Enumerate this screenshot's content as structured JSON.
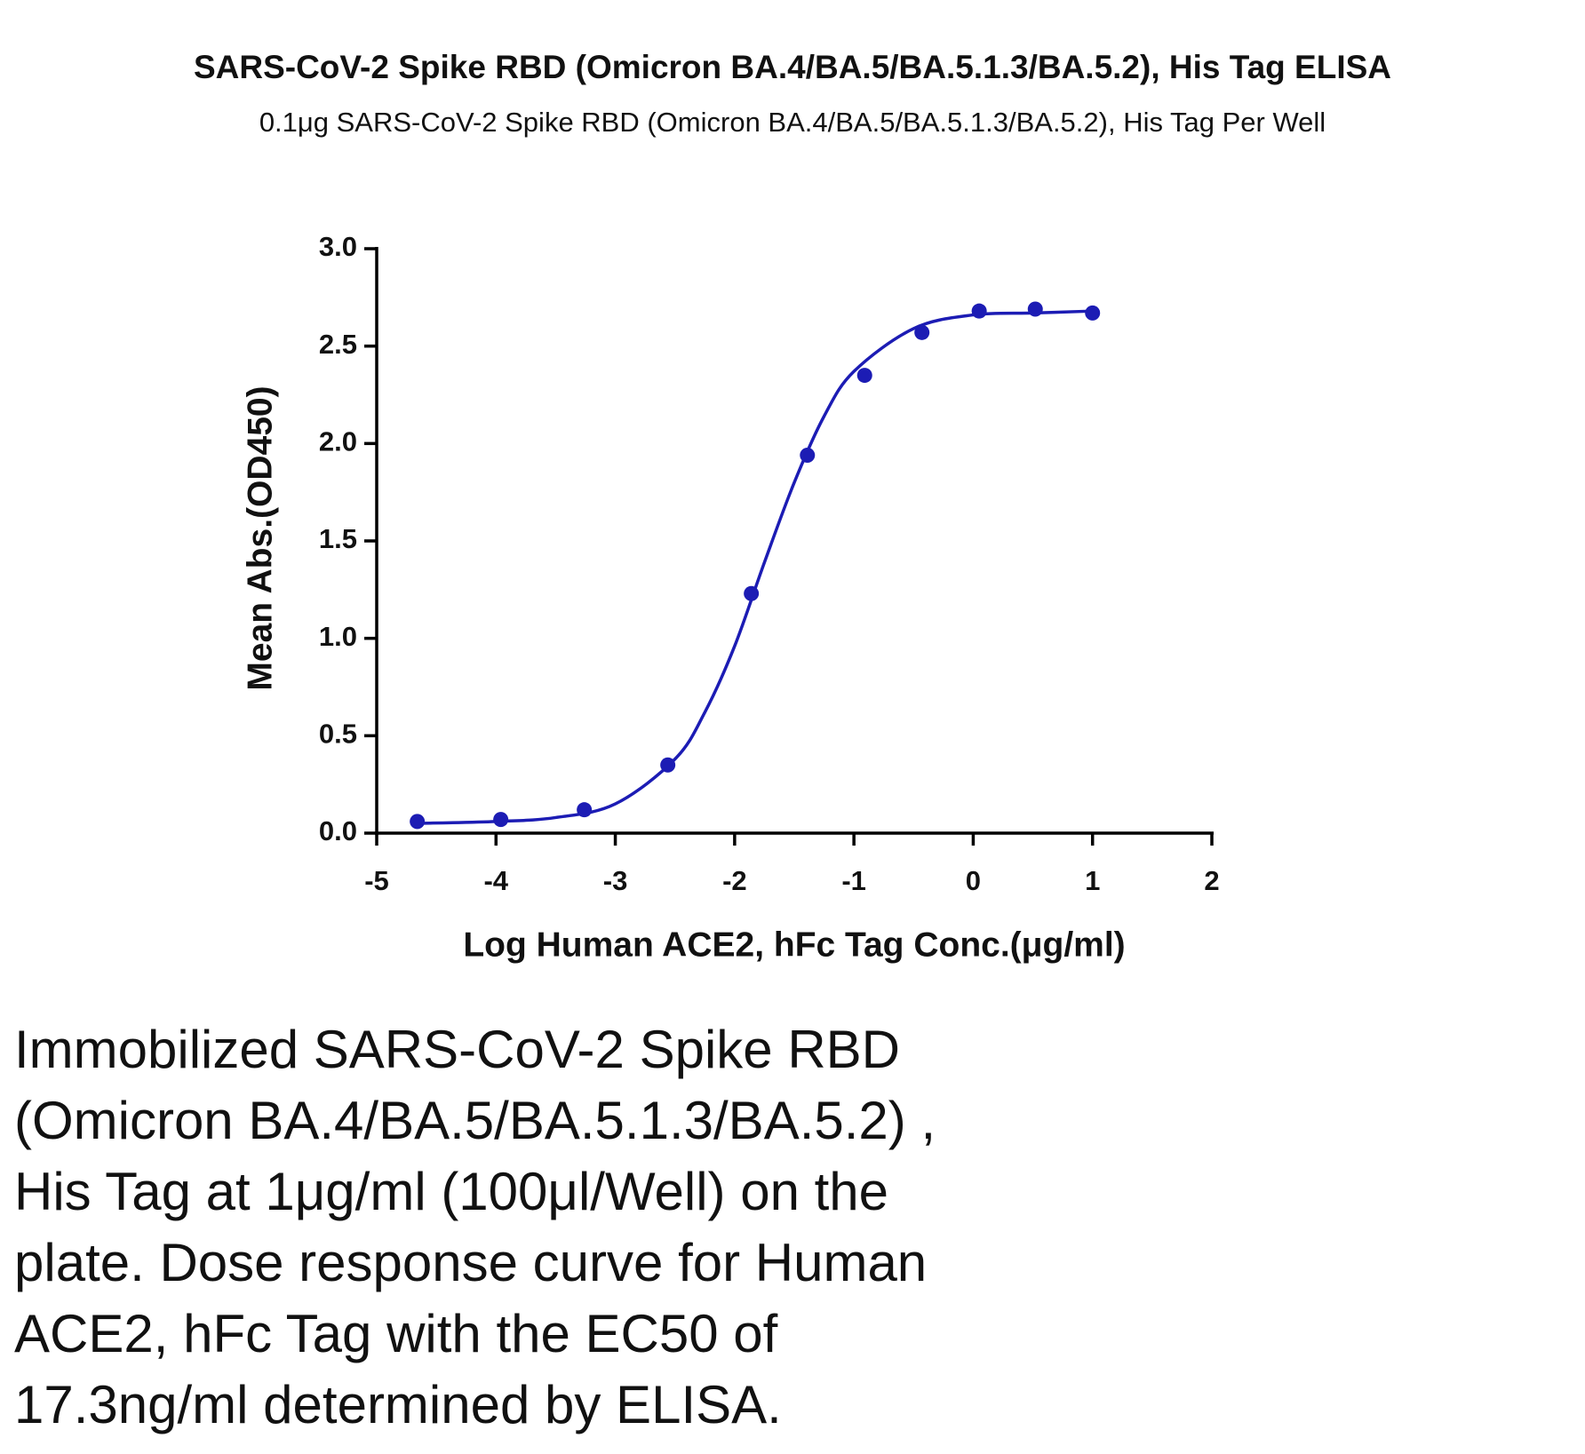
{
  "chart_data": {
    "type": "scatter",
    "title": "SARS-CoV-2 Spike RBD (Omicron BA.4/BA.5/BA.5.1.3/BA.5.2), His Tag ELISA",
    "subtitle": "0.1μg SARS-CoV-2 Spike RBD (Omicron BA.4/BA.5/BA.5.1.3/BA.5.2), His Tag Per Well",
    "x_label": "Log Human ACE2, hFc Tag Conc.(μg/ml)",
    "y_label": "Mean Abs.(OD450)",
    "color": "#1c1cb4",
    "x": [
      -4.66,
      -3.96,
      -3.26,
      -2.56,
      -1.86,
      -1.39,
      -0.91,
      -0.43,
      0.05,
      0.52,
      1.0
    ],
    "values": [
      0.06,
      0.07,
      0.12,
      0.35,
      1.23,
      1.94,
      2.35,
      2.57,
      2.68,
      2.69,
      2.67
    ],
    "fit_curve": {
      "x": [
        -4.66,
        -4,
        -3.5,
        -3,
        -2.5,
        -2.25,
        -2,
        -1.75,
        -1.5,
        -1.25,
        -1,
        -0.5,
        0,
        0.5,
        1
      ],
      "values": [
        0.05,
        0.06,
        0.08,
        0.15,
        0.38,
        0.62,
        0.96,
        1.39,
        1.8,
        2.14,
        2.37,
        2.59,
        2.66,
        2.67,
        2.68
      ]
    },
    "xlim": [
      -5,
      2
    ],
    "xticks": [
      -5,
      -4,
      -3,
      -2,
      -1,
      0,
      1,
      2
    ],
    "ylim": [
      0,
      3
    ],
    "yticks": [
      {
        "value": 0,
        "label": "0.0"
      },
      0.5,
      {
        "value": 1,
        "label": "1.0"
      },
      1.5,
      {
        "value": 2,
        "label": "2.0"
      },
      2.5,
      {
        "value": 3,
        "label": "3.0"
      }
    ]
  },
  "description": {
    "lines": [
      "Immobilized SARS-CoV-2 Spike RBD",
      "(Omicron BA.4/BA.5/BA.5.1.3/BA.5.2) ,",
      "His Tag at 1μg/ml (100μl/Well) on the",
      "plate. Dose response curve for Human",
      "ACE2, hFc Tag with the EC50 of",
      "17.3ng/ml determined by ELISA."
    ]
  }
}
